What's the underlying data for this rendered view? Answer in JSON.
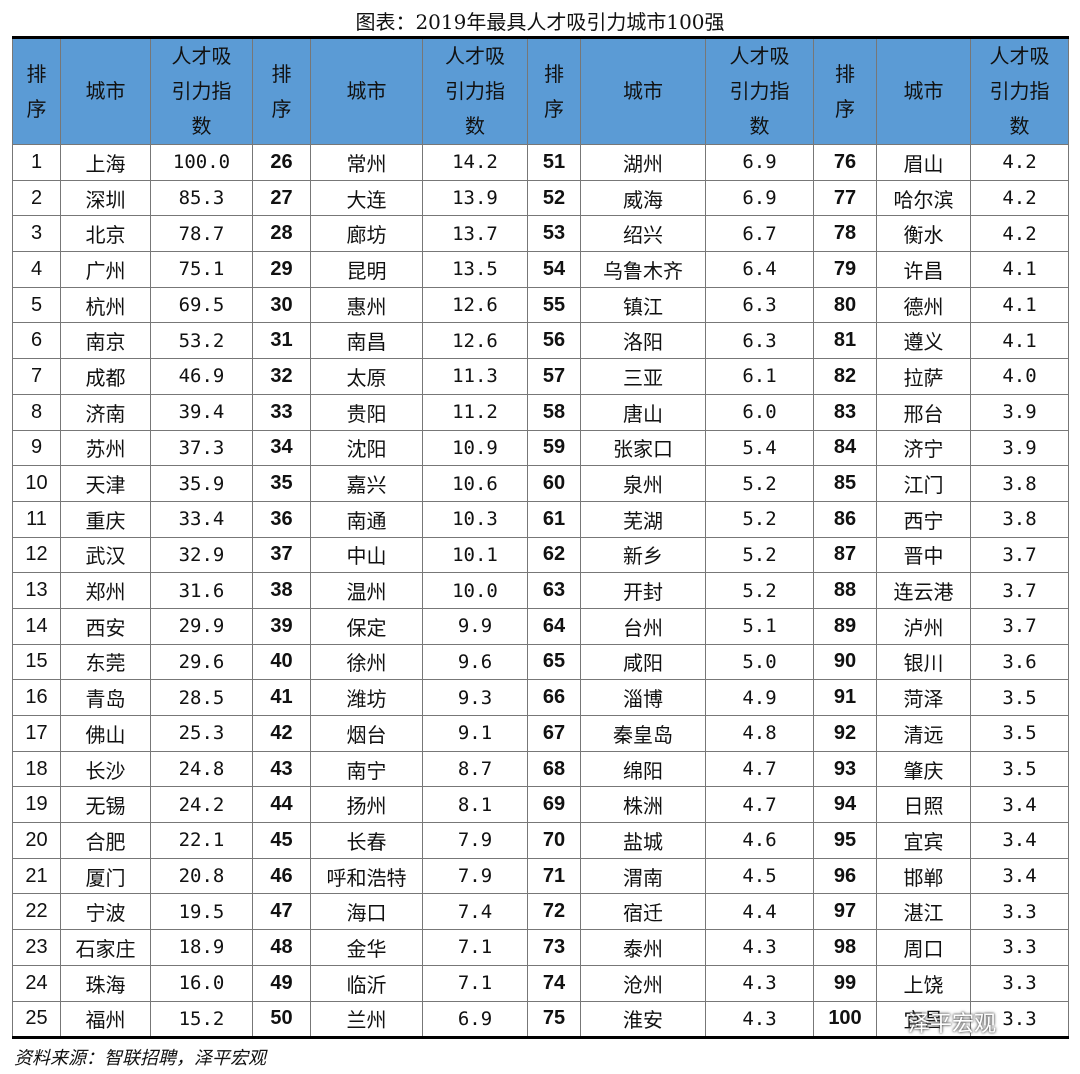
{
  "title": "图表：2019年最具人才吸引力城市100强",
  "table": {
    "header": [
      "排序",
      "城市",
      "人才吸引力指数",
      "排序",
      "城市",
      "人才吸引力指数",
      "排序",
      "城市",
      "人才吸引力指数",
      "排序",
      "城市",
      "人才吸引力指数"
    ],
    "rows": [
      [
        "1",
        "上海",
        "100.0",
        "26",
        "常州",
        "14.2",
        "51",
        "湖州",
        "6.9",
        "76",
        "眉山",
        "4.2"
      ],
      [
        "2",
        "深圳",
        "85.3",
        "27",
        "大连",
        "13.9",
        "52",
        "威海",
        "6.9",
        "77",
        "哈尔滨",
        "4.2"
      ],
      [
        "3",
        "北京",
        "78.7",
        "28",
        "廊坊",
        "13.7",
        "53",
        "绍兴",
        "6.7",
        "78",
        "衡水",
        "4.2"
      ],
      [
        "4",
        "广州",
        "75.1",
        "29",
        "昆明",
        "13.5",
        "54",
        "乌鲁木齐",
        "6.4",
        "79",
        "许昌",
        "4.1"
      ],
      [
        "5",
        "杭州",
        "69.5",
        "30",
        "惠州",
        "12.6",
        "55",
        "镇江",
        "6.3",
        "80",
        "德州",
        "4.1"
      ],
      [
        "6",
        "南京",
        "53.2",
        "31",
        "南昌",
        "12.6",
        "56",
        "洛阳",
        "6.3",
        "81",
        "遵义",
        "4.1"
      ],
      [
        "7",
        "成都",
        "46.9",
        "32",
        "太原",
        "11.3",
        "57",
        "三亚",
        "6.1",
        "82",
        "拉萨",
        "4.0"
      ],
      [
        "8",
        "济南",
        "39.4",
        "33",
        "贵阳",
        "11.2",
        "58",
        "唐山",
        "6.0",
        "83",
        "邢台",
        "3.9"
      ],
      [
        "9",
        "苏州",
        "37.3",
        "34",
        "沈阳",
        "10.9",
        "59",
        "张家口",
        "5.4",
        "84",
        "济宁",
        "3.9"
      ],
      [
        "10",
        "天津",
        "35.9",
        "35",
        "嘉兴",
        "10.6",
        "60",
        "泉州",
        "5.2",
        "85",
        "江门",
        "3.8"
      ],
      [
        "11",
        "重庆",
        "33.4",
        "36",
        "南通",
        "10.3",
        "61",
        "芜湖",
        "5.2",
        "86",
        "西宁",
        "3.8"
      ],
      [
        "12",
        "武汉",
        "32.9",
        "37",
        "中山",
        "10.1",
        "62",
        "新乡",
        "5.2",
        "87",
        "晋中",
        "3.7"
      ],
      [
        "13",
        "郑州",
        "31.6",
        "38",
        "温州",
        "10.0",
        "63",
        "开封",
        "5.2",
        "88",
        "连云港",
        "3.7"
      ],
      [
        "14",
        "西安",
        "29.9",
        "39",
        "保定",
        "9.9",
        "64",
        "台州",
        "5.1",
        "89",
        "泸州",
        "3.7"
      ],
      [
        "15",
        "东莞",
        "29.6",
        "40",
        "徐州",
        "9.6",
        "65",
        "咸阳",
        "5.0",
        "90",
        "银川",
        "3.6"
      ],
      [
        "16",
        "青岛",
        "28.5",
        "41",
        "潍坊",
        "9.3",
        "66",
        "淄博",
        "4.9",
        "91",
        "菏泽",
        "3.5"
      ],
      [
        "17",
        "佛山",
        "25.3",
        "42",
        "烟台",
        "9.1",
        "67",
        "秦皇岛",
        "4.8",
        "92",
        "清远",
        "3.5"
      ],
      [
        "18",
        "长沙",
        "24.8",
        "43",
        "南宁",
        "8.7",
        "68",
        "绵阳",
        "4.7",
        "93",
        "肇庆",
        "3.5"
      ],
      [
        "19",
        "无锡",
        "24.2",
        "44",
        "扬州",
        "8.1",
        "69",
        "株洲",
        "4.7",
        "94",
        "日照",
        "3.4"
      ],
      [
        "20",
        "合肥",
        "22.1",
        "45",
        "长春",
        "7.9",
        "70",
        "盐城",
        "4.6",
        "95",
        "宜宾",
        "3.4"
      ],
      [
        "21",
        "厦门",
        "20.8",
        "46",
        "呼和浩特",
        "7.9",
        "71",
        "渭南",
        "4.5",
        "96",
        "邯郸",
        "3.4"
      ],
      [
        "22",
        "宁波",
        "19.5",
        "47",
        "海口",
        "7.4",
        "72",
        "宿迁",
        "4.4",
        "97",
        "湛江",
        "3.3"
      ],
      [
        "23",
        "石家庄",
        "18.9",
        "48",
        "金华",
        "7.1",
        "73",
        "泰州",
        "4.3",
        "98",
        "周口",
        "3.3"
      ],
      [
        "24",
        "珠海",
        "16.0",
        "49",
        "临沂",
        "7.1",
        "74",
        "沧州",
        "4.3",
        "99",
        "上饶",
        "3.3"
      ],
      [
        "25",
        "福州",
        "15.2",
        "50",
        "兰州",
        "6.9",
        "75",
        "淮安",
        "4.3",
        "100",
        "宜昌",
        "3.3"
      ]
    ]
  },
  "source": "资料来源：智联招聘，泽平宏观",
  "watermark": "泽平宏观"
}
